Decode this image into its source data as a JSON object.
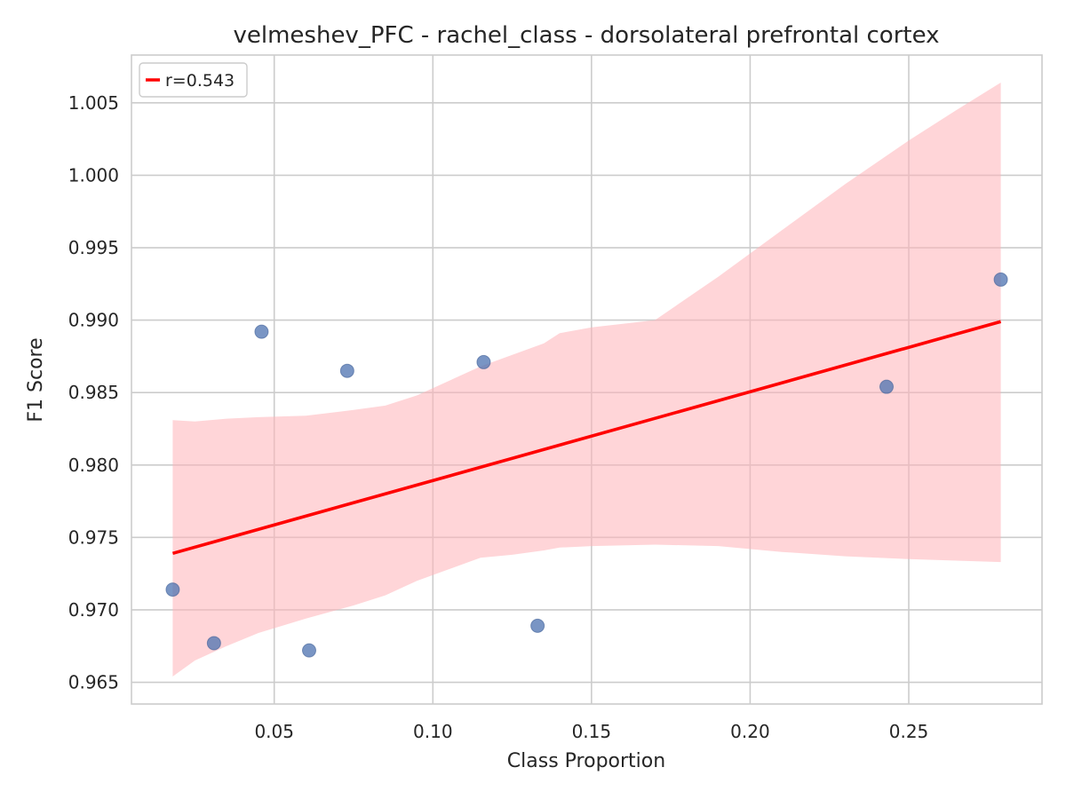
{
  "chart_data": {
    "type": "scatter",
    "title": "velmeshev_PFC - rachel_class - dorsolateral prefrontal cortex",
    "xlabel": "Class Proportion",
    "ylabel": "F1 Score",
    "xlim": [
      0.005,
      0.292
    ],
    "ylim": [
      0.9635,
      1.0083
    ],
    "xticks": [
      0.05,
      0.1,
      0.15,
      0.2,
      0.25
    ],
    "xtick_labels": [
      "0.05",
      "0.10",
      "0.15",
      "0.20",
      "0.25"
    ],
    "yticks": [
      0.965,
      0.97,
      0.975,
      0.98,
      0.985,
      0.99,
      0.995,
      1.0,
      1.005
    ],
    "ytick_labels": [
      "0.965",
      "0.970",
      "0.975",
      "0.980",
      "0.985",
      "0.990",
      "0.995",
      "1.000",
      "1.005"
    ],
    "grid": true,
    "legend": {
      "placement": "top-left",
      "entries": [
        "r=0.543"
      ]
    },
    "colors": {
      "points": "#4c72b0",
      "fit_line": "#ff0000",
      "band": "#ffb3b8",
      "grid": "#cccccc"
    },
    "points": [
      {
        "x": 0.018,
        "y": 0.9714
      },
      {
        "x": 0.031,
        "y": 0.9677
      },
      {
        "x": 0.046,
        "y": 0.9892
      },
      {
        "x": 0.061,
        "y": 0.9672
      },
      {
        "x": 0.073,
        "y": 0.9865
      },
      {
        "x": 0.116,
        "y": 0.9871
      },
      {
        "x": 0.133,
        "y": 0.9689
      },
      {
        "x": 0.243,
        "y": 0.9854
      },
      {
        "x": 0.279,
        "y": 0.9928
      }
    ],
    "fit_line": {
      "name": "r=0.543",
      "x": [
        0.018,
        0.279
      ],
      "y": [
        0.9739,
        0.9899
      ]
    },
    "confidence_band": {
      "x": [
        0.018,
        0.025,
        0.035,
        0.045,
        0.06,
        0.075,
        0.085,
        0.095,
        0.105,
        0.115,
        0.125,
        0.135,
        0.14,
        0.15,
        0.17,
        0.19,
        0.21,
        0.23,
        0.25,
        0.265,
        0.279
      ],
      "upper": [
        0.9831,
        0.983,
        0.9832,
        0.9833,
        0.9834,
        0.9838,
        0.9841,
        0.9848,
        0.9858,
        0.9868,
        0.9876,
        0.9884,
        0.9891,
        0.9895,
        0.99,
        0.993,
        0.9962,
        0.9994,
        1.0024,
        1.0045,
        1.0064
      ],
      "lower": [
        0.9654,
        0.9665,
        0.9675,
        0.9684,
        0.9694,
        0.9703,
        0.971,
        0.972,
        0.9728,
        0.9736,
        0.9738,
        0.9741,
        0.9743,
        0.9744,
        0.9745,
        0.9744,
        0.974,
        0.9737,
        0.9735,
        0.9734,
        0.9733
      ]
    }
  }
}
